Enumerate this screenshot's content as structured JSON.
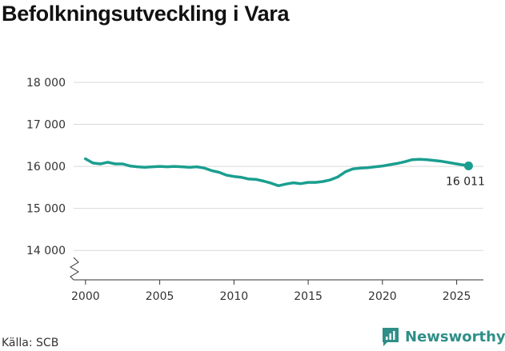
{
  "chart_data": {
    "type": "line",
    "title": "Befolkningsutveckling i Vara",
    "xlabel": "",
    "ylabel": "",
    "xlim": [
      1999.2,
      2026.8
    ],
    "ylim": [
      13300,
      18000
    ],
    "x_ticks": [
      2000,
      2005,
      2010,
      2015,
      2020,
      2025
    ],
    "x_tick_labels": [
      "2000",
      "2005",
      "2010",
      "2015",
      "2020",
      "2025"
    ],
    "y_ticks": [
      14000,
      15000,
      16000,
      17000,
      18000
    ],
    "y_tick_labels": [
      "14 000",
      "15 000",
      "16 000",
      "17 000",
      "18 000"
    ],
    "axis_break": true,
    "grid": "horizontal",
    "line_color": "#1a9e8f",
    "series": [
      {
        "name": "Befolkning",
        "x": [
          2000.0,
          2000.5,
          2001.0,
          2001.5,
          2002.0,
          2002.5,
          2003.0,
          2003.5,
          2004.0,
          2004.5,
          2005.0,
          2005.5,
          2006.0,
          2006.5,
          2007.0,
          2007.5,
          2008.0,
          2008.5,
          2009.0,
          2009.5,
          2010.0,
          2010.5,
          2011.0,
          2011.5,
          2012.0,
          2012.5,
          2013.0,
          2013.5,
          2014.0,
          2014.5,
          2015.0,
          2015.5,
          2016.0,
          2016.5,
          2017.0,
          2017.5,
          2018.0,
          2018.5,
          2019.0,
          2019.5,
          2020.0,
          2020.5,
          2021.0,
          2021.5,
          2022.0,
          2022.5,
          2023.0,
          2023.5,
          2024.0,
          2024.5,
          2025.0,
          2025.5,
          2025.8
        ],
        "values": [
          16180,
          16080,
          16060,
          16100,
          16060,
          16060,
          16010,
          15990,
          15980,
          15990,
          16000,
          15990,
          16000,
          15990,
          15980,
          15990,
          15960,
          15900,
          15860,
          15790,
          15760,
          15740,
          15700,
          15690,
          15650,
          15600,
          15540,
          15580,
          15610,
          15590,
          15620,
          15620,
          15640,
          15680,
          15750,
          15870,
          15940,
          15960,
          15970,
          15990,
          16010,
          16040,
          16070,
          16110,
          16160,
          16170,
          16160,
          16140,
          16120,
          16090,
          16060,
          16030,
          16011
        ]
      }
    ],
    "end_label": "16 011"
  },
  "source": "Källa: SCB",
  "brand": "Newsworthy"
}
